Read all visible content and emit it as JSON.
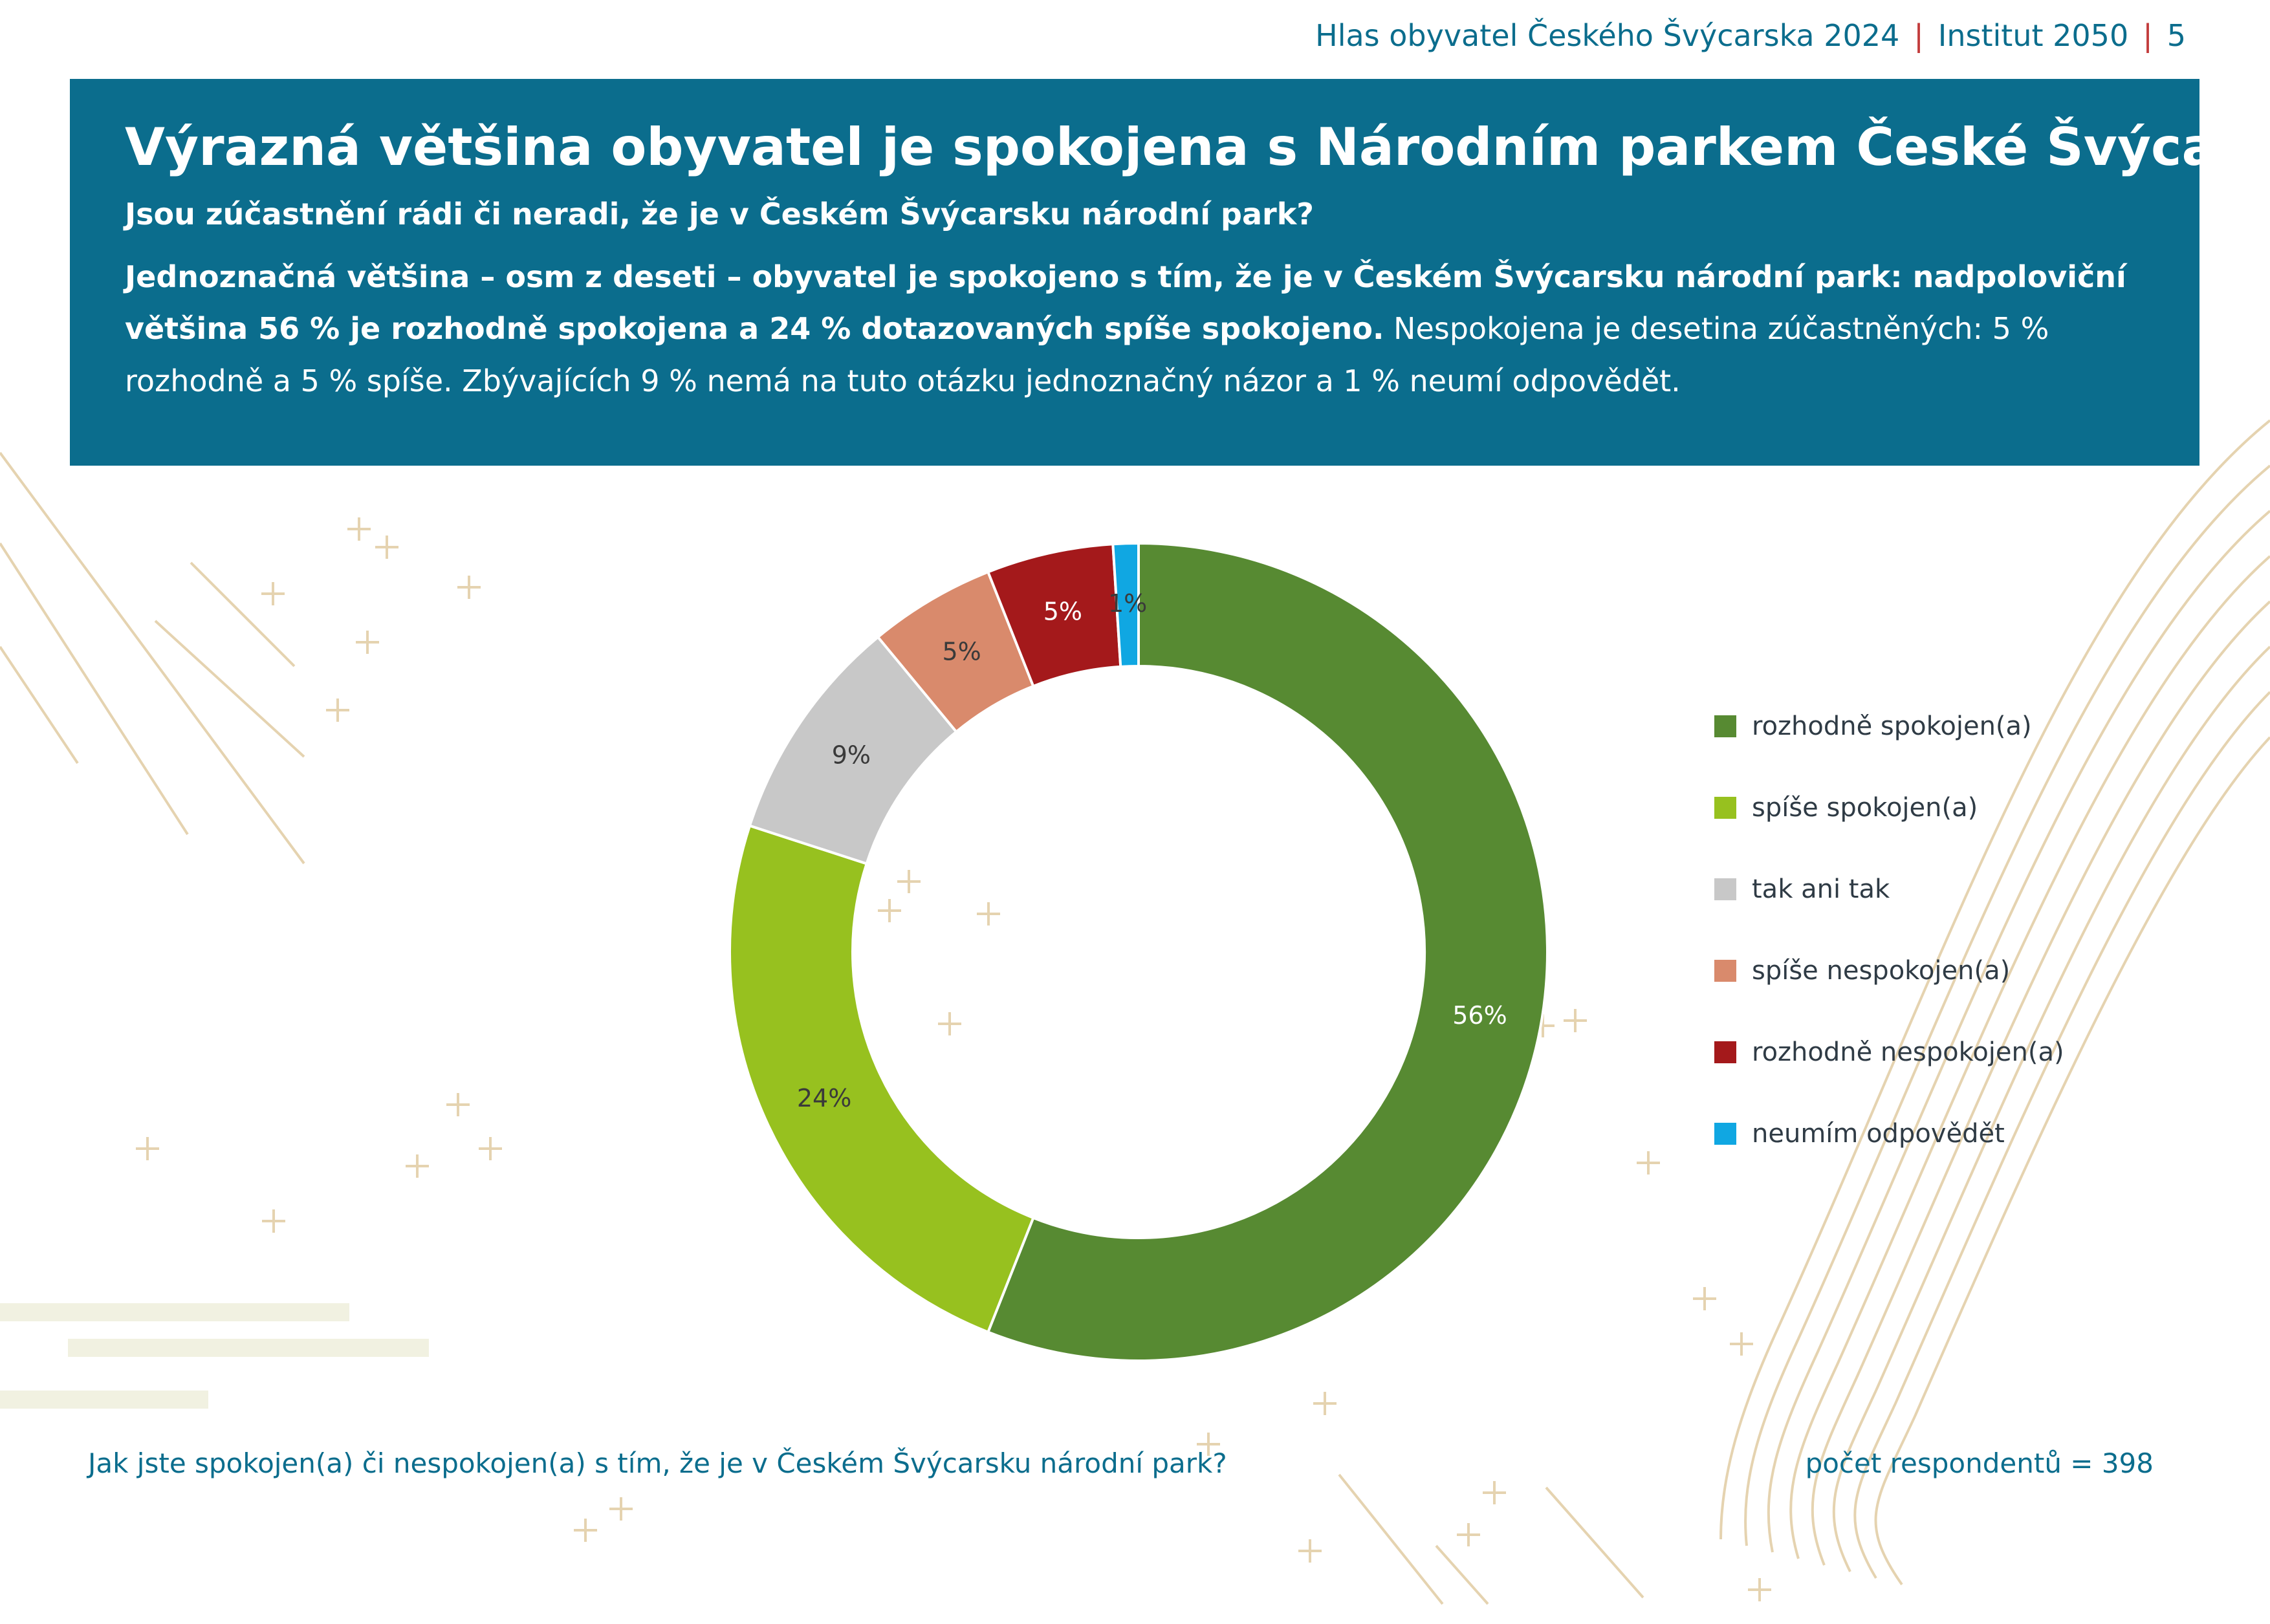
{
  "header": {
    "report": "Hlas obyvatel Českého Švýcarska 2024",
    "institute": "Institut 2050",
    "page": "5"
  },
  "banner": {
    "title": "Výrazná většina obyvatel je spokojena s Národním parkem České Švýcarsko",
    "question": "Jsou zúčastnění rádi či neradi, že je v Českém Švýcarsku národní park?",
    "summary_bold": "Jednoznačná většina – osm z deseti – obyvatel je spokojeno s tím, že je v Českém Švýcarsku národní park: nadpoloviční většina 56 % je rozhodně spokojena a 24 % dotazovaných spíše spokojeno.",
    "summary_regular": " Nespokojena je desetina zúčastněných: 5 % rozhodně a 5 % spíše. Zbývajících 9 % nemá na tuto otázku jednoznačný názor a 1 % neumí odpovědět."
  },
  "chart_data": {
    "type": "pie",
    "categories": [
      "rozhodně spokojen(a)",
      "spíše spokojen(a)",
      "tak ani tak",
      "spíše nespokojen(a)",
      "rozhodně nespokojen(a)",
      "neumím odpovědět"
    ],
    "values": [
      56,
      24,
      9,
      5,
      5,
      1
    ],
    "labels": [
      "56%",
      "24%",
      "9%",
      "5%",
      "5%",
      "1%"
    ],
    "colors": [
      "#578a32",
      "#97c11f",
      "#c8c8c8",
      "#d98a6c",
      "#a4191b",
      "#10a7e2"
    ],
    "label_colors": [
      "#ffffff",
      "#3a3a3a",
      "#3a3a3a",
      "#3a3a3a",
      "#ffffff",
      "#3a3a3a"
    ],
    "donut": true,
    "legend_position": "right"
  },
  "footer": {
    "question": "Jak jste spokojen(a) či nespokojen(a) s tím, že je v Českém Švýcarsku národní park?",
    "respondents": "počet respondentů = 398"
  }
}
